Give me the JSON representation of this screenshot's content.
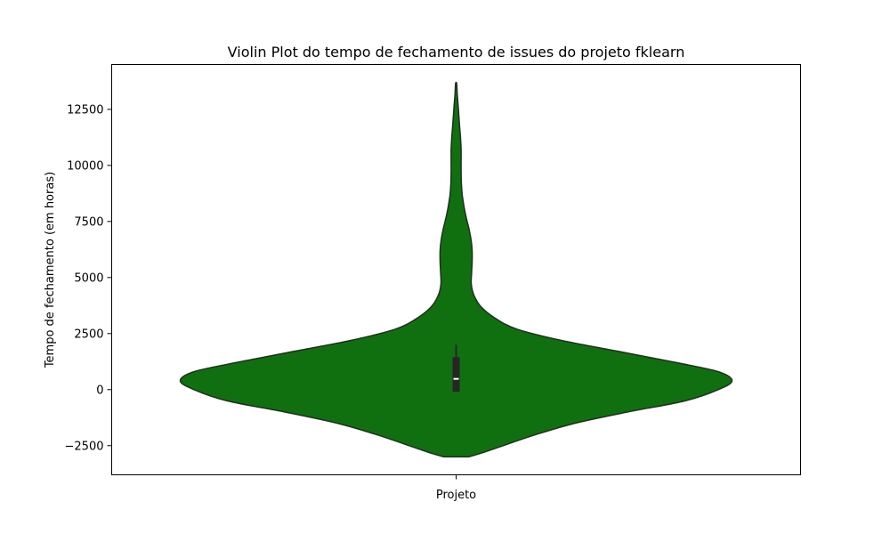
{
  "chart_data": {
    "type": "violin",
    "title": "Violin Plot do tempo de fechamento de issues do projeto fklearn",
    "xlabel": "Projeto",
    "ylabel": "Tempo de fechamento (em horas)",
    "categories": [
      ""
    ],
    "ylim": [
      -3800,
      14500
    ],
    "yticks": [
      -2500,
      0,
      2500,
      5000,
      7500,
      10000,
      12500
    ],
    "ytick_labels": [
      "−2500",
      "0",
      "2500",
      "5000",
      "7500",
      "10000",
      "12500"
    ],
    "grid": false,
    "color": "#107010",
    "edge_color": "#1f2f1f",
    "box_color": "#262626",
    "median_color": "#ffffff",
    "violin": {
      "min": -3000,
      "max": 13650,
      "density_half_width": [
        {
          "y": -3000,
          "w": 0.045
        },
        {
          "y": -2800,
          "w": 0.1
        },
        {
          "y": -2500,
          "w": 0.17
        },
        {
          "y": -2000,
          "w": 0.29
        },
        {
          "y": -1500,
          "w": 0.43
        },
        {
          "y": -1000,
          "w": 0.62
        },
        {
          "y": -500,
          "w": 0.83
        },
        {
          "y": 0,
          "w": 0.95
        },
        {
          "y": 400,
          "w": 1.0
        },
        {
          "y": 800,
          "w": 0.95
        },
        {
          "y": 1200,
          "w": 0.8
        },
        {
          "y": 1700,
          "w": 0.59
        },
        {
          "y": 2200,
          "w": 0.38
        },
        {
          "y": 2700,
          "w": 0.22
        },
        {
          "y": 3200,
          "w": 0.14
        },
        {
          "y": 3700,
          "w": 0.09
        },
        {
          "y": 4200,
          "w": 0.065
        },
        {
          "y": 4700,
          "w": 0.055
        },
        {
          "y": 5200,
          "w": 0.056
        },
        {
          "y": 5700,
          "w": 0.058
        },
        {
          "y": 6200,
          "w": 0.058
        },
        {
          "y": 6700,
          "w": 0.054
        },
        {
          "y": 7200,
          "w": 0.046
        },
        {
          "y": 7700,
          "w": 0.036
        },
        {
          "y": 8200,
          "w": 0.028
        },
        {
          "y": 8700,
          "w": 0.022
        },
        {
          "y": 9200,
          "w": 0.019
        },
        {
          "y": 9700,
          "w": 0.018
        },
        {
          "y": 10200,
          "w": 0.018
        },
        {
          "y": 10700,
          "w": 0.018
        },
        {
          "y": 11200,
          "w": 0.016
        },
        {
          "y": 11700,
          "w": 0.013
        },
        {
          "y": 12200,
          "w": 0.01
        },
        {
          "y": 12700,
          "w": 0.007
        },
        {
          "y": 13200,
          "w": 0.004
        },
        {
          "y": 13650,
          "w": 0.002
        }
      ]
    },
    "box": {
      "q1": -100,
      "median": 480,
      "q3": 1450,
      "whisker_low": -100,
      "whisker_high": 2000
    }
  }
}
